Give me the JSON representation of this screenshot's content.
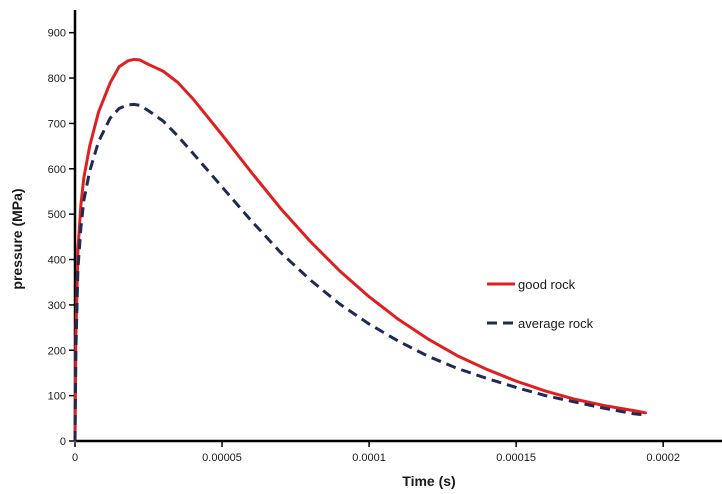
{
  "chart_data": {
    "type": "line",
    "title": "",
    "xlabel": "Time (s)",
    "ylabel": "pressure (MPa)",
    "xlim": [
      0,
      0.00022
    ],
    "ylim": [
      0,
      950
    ],
    "x_ticks": [
      0,
      5e-05,
      0.0001,
      0.00015,
      0.0002
    ],
    "x_tick_labels": [
      "0",
      "0.00005",
      "0.0001",
      "0.00015",
      "0.0002"
    ],
    "y_ticks": [
      0,
      100,
      200,
      300,
      400,
      500,
      600,
      700,
      800,
      900
    ],
    "y_tick_labels": [
      "0",
      "100",
      "200",
      "300",
      "400",
      "500",
      "600",
      "700",
      "800",
      "900"
    ],
    "grid": false,
    "legend_placement": "right",
    "series": [
      {
        "name": "good rock",
        "color": "#e02020",
        "style": "solid",
        "x": [
          0,
          3e-07,
          1e-06,
          2e-06,
          3e-06,
          5e-06,
          8e-06,
          1.2e-05,
          1.5e-05,
          1.8e-05,
          2e-05,
          2.2e-05,
          2.5e-05,
          3e-05,
          3.5e-05,
          4e-05,
          5e-05,
          6e-05,
          7e-05,
          8e-05,
          9e-05,
          0.0001,
          0.00011,
          0.00012,
          0.00013,
          0.00014,
          0.00015,
          0.00016,
          0.00017,
          0.00018,
          0.00019,
          0.000194
        ],
        "y": [
          0,
          230,
          420,
          520,
          580,
          650,
          725,
          790,
          825,
          838,
          841,
          840,
          830,
          815,
          790,
          755,
          675,
          592,
          512,
          440,
          375,
          318,
          268,
          225,
          188,
          158,
          132,
          110,
          92,
          78,
          67,
          62
        ]
      },
      {
        "name": "average rock",
        "color": "#1f2a55",
        "style": "dashed",
        "x": [
          0,
          3e-07,
          1e-06,
          2e-06,
          3e-06,
          5e-06,
          8e-06,
          1.2e-05,
          1.5e-05,
          1.8e-05,
          2e-05,
          2.2e-05,
          2.5e-05,
          3e-05,
          3.5e-05,
          4e-05,
          5e-05,
          6e-05,
          7e-05,
          8e-05,
          9e-05,
          0.0001,
          0.00011,
          0.00012,
          0.00013,
          0.00014,
          0.00015,
          0.00016,
          0.00017,
          0.00018,
          0.00019,
          0.000194
        ],
        "y": [
          0,
          200,
          380,
          470,
          530,
          595,
          660,
          712,
          733,
          741,
          742,
          740,
          728,
          705,
          672,
          635,
          560,
          485,
          415,
          355,
          302,
          258,
          220,
          187,
          160,
          138,
          118,
          100,
          86,
          72,
          60,
          57
        ]
      }
    ]
  }
}
